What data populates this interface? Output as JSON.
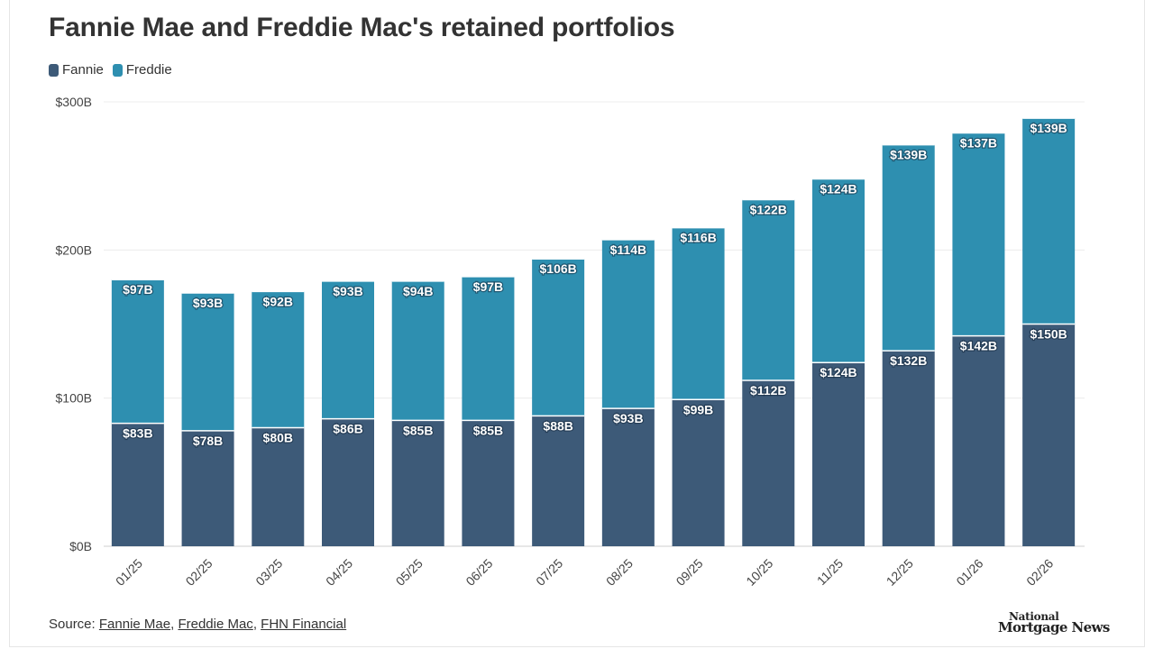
{
  "title": "Fannie Mae and Freddie Mac's retained portfolios",
  "legend": [
    {
      "label": "Fannie",
      "color": "#3d5a78"
    },
    {
      "label": "Freddie",
      "color": "#2e8fb0"
    }
  ],
  "footer": {
    "prefix": "Source: ",
    "sources": [
      "Fannie Mae",
      "Freddie Mac",
      "FHN Financial"
    ]
  },
  "logo": {
    "line1": "National",
    "line2": "Mortgage News"
  },
  "chart_data": {
    "type": "bar",
    "stacked": true,
    "categories": [
      "01/25",
      "02/25",
      "03/25",
      "04/25",
      "05/25",
      "06/25",
      "07/25",
      "08/25",
      "09/25",
      "10/25",
      "11/25",
      "12/25",
      "01/26",
      "02/26"
    ],
    "series": [
      {
        "name": "Fannie",
        "color": "#3d5a78",
        "values": [
          83,
          78,
          80,
          86,
          85,
          85,
          88,
          93,
          99,
          112,
          124,
          132,
          142,
          150
        ]
      },
      {
        "name": "Freddie",
        "color": "#2e8fb0",
        "values": [
          97,
          93,
          92,
          93,
          94,
          97,
          106,
          114,
          116,
          122,
          124,
          139,
          137,
          139
        ]
      }
    ],
    "data_labels": {
      "Fannie": [
        "$83B",
        "$78B",
        "$80B",
        "$86B",
        "$85B",
        "$85B",
        "$88B",
        "$93B",
        "$99B",
        "$112B",
        "$124B",
        "$132B",
        "$142B",
        "$150B"
      ],
      "Freddie": [
        "$97B",
        "$93B",
        "$92B",
        "$93B",
        "$94B",
        "$97B",
        "$106B",
        "$114B",
        "$116B",
        "$122B",
        "$124B",
        "$139B",
        "$137B",
        "$139B"
      ]
    },
    "yticks": [
      0,
      100,
      200,
      300
    ],
    "ytick_labels": [
      "$0B",
      "$100B",
      "$200B",
      "$300B"
    ],
    "ylim": [
      0,
      300
    ],
    "grid": true,
    "legend_position": "top-left"
  }
}
